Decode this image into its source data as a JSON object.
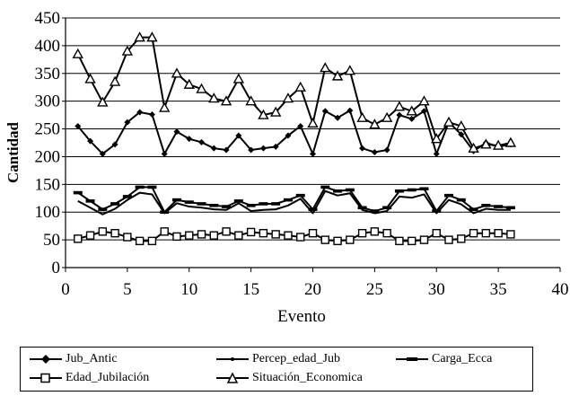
{
  "chart_data": {
    "type": "line",
    "title": "",
    "xlabel": "Evento",
    "ylabel": "Cantidad",
    "xlim": [
      0,
      40
    ],
    "ylim": [
      0,
      450
    ],
    "xticks": [
      0,
      5,
      10,
      15,
      20,
      25,
      30,
      35,
      40
    ],
    "yticks": [
      0,
      50,
      100,
      150,
      200,
      250,
      300,
      350,
      400,
      450
    ],
    "grid": "horizontal",
    "legend_position": "bottom",
    "x": [
      1,
      2,
      3,
      4,
      5,
      6,
      7,
      8,
      9,
      10,
      11,
      12,
      13,
      14,
      15,
      16,
      17,
      18,
      19,
      20,
      21,
      22,
      23,
      24,
      25,
      26,
      27,
      28,
      29,
      30,
      31,
      32,
      33,
      34,
      35,
      36
    ],
    "series": [
      {
        "name": "Jub_Antic",
        "marker": "diamond-filled",
        "values": [
          255,
          228,
          205,
          222,
          262,
          280,
          276,
          205,
          245,
          232,
          226,
          215,
          212,
          238,
          212,
          215,
          218,
          238,
          255,
          205,
          282,
          270,
          283,
          215,
          208,
          212,
          275,
          268,
          282,
          205,
          262,
          240,
          210,
          225,
          218,
          222
        ]
      },
      {
        "name": "Percep_edad_Jub",
        "marker": "none",
        "values": [
          120,
          108,
          96,
          106,
          122,
          135,
          132,
          98,
          116,
          110,
          108,
          105,
          104,
          116,
          102,
          104,
          105,
          112,
          124,
          98,
          138,
          130,
          134,
          104,
          98,
          102,
          128,
          126,
          132,
          98,
          122,
          114,
          98,
          106,
          104,
          104
        ]
      },
      {
        "name": "Carga_Ecca",
        "marker": "dash",
        "values": [
          135,
          120,
          105,
          115,
          128,
          145,
          145,
          100,
          122,
          118,
          115,
          112,
          110,
          120,
          112,
          115,
          115,
          122,
          130,
          105,
          145,
          138,
          140,
          108,
          102,
          108,
          138,
          140,
          142,
          102,
          130,
          122,
          105,
          112,
          110,
          108
        ]
      },
      {
        "name": "Edad_Jubilación",
        "marker": "square-open",
        "values": [
          52,
          58,
          65,
          62,
          55,
          48,
          48,
          65,
          56,
          58,
          60,
          58,
          65,
          58,
          64,
          62,
          60,
          58,
          55,
          62,
          50,
          48,
          50,
          62,
          65,
          62,
          48,
          48,
          50,
          62,
          50,
          52,
          62,
          62,
          62,
          60
        ]
      },
      {
        "name": "Situación_Economica",
        "marker": "triangle-open",
        "values": [
          385,
          340,
          298,
          335,
          390,
          415,
          415,
          288,
          350,
          330,
          322,
          305,
          300,
          340,
          300,
          275,
          280,
          305,
          325,
          260,
          360,
          345,
          355,
          270,
          258,
          270,
          290,
          282,
          300,
          232,
          262,
          255,
          215,
          222,
          220,
          225
        ]
      }
    ]
  }
}
